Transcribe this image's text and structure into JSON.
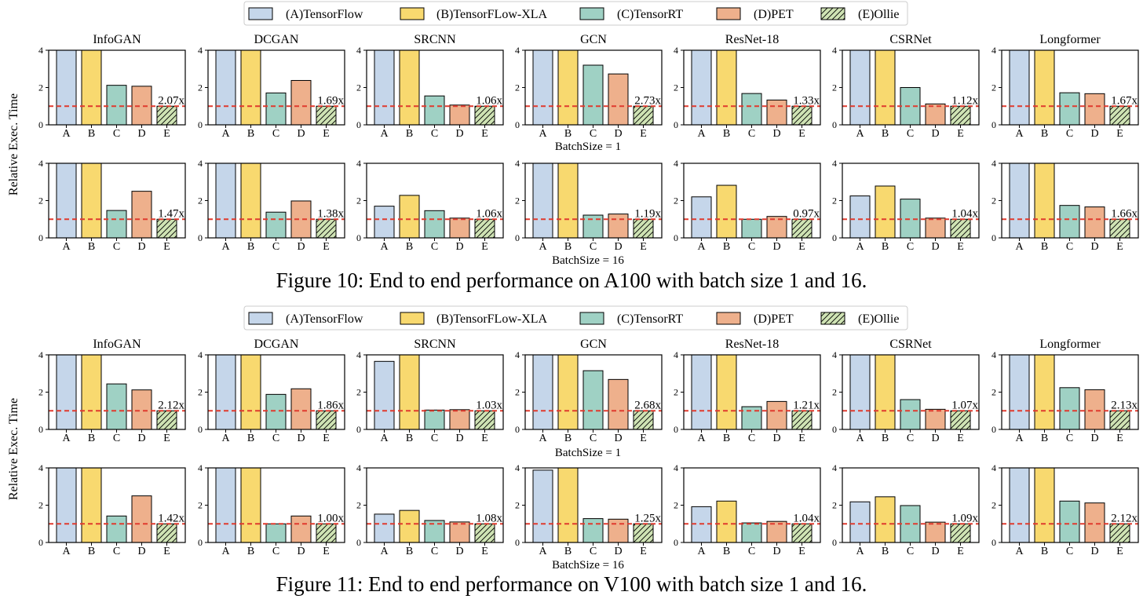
{
  "legend": {
    "entries": [
      {
        "name": "(A)TensorFlow",
        "color": "#c5d6ea",
        "hatch": false
      },
      {
        "name": "(B)TensorFLow-XLA",
        "color": "#f8d96f",
        "hatch": false
      },
      {
        "name": "(C)TensorRT",
        "color": "#9fd1c4",
        "hatch": false
      },
      {
        "name": "(D)PET",
        "color": "#eeb08c",
        "hatch": false
      },
      {
        "name": "(E)Ollie",
        "color": "#cfe3b4",
        "hatch": true
      }
    ]
  },
  "colors": {
    "reference_line": "#e03a2e",
    "bar_edge": "#000000"
  },
  "chart_data": [
    {
      "type": "bar",
      "caption": "Figure 10: End to end performance on A100 with batch size 1 and 16.",
      "ylabel": "Relative Exec. Time",
      "categories": [
        "A",
        "B",
        "C",
        "D",
        "E"
      ],
      "yticks": [
        0,
        2,
        4
      ],
      "ylim": [
        0,
        4
      ],
      "reference_line_y": 1,
      "rows": [
        {
          "label": "BatchSize = 1",
          "panels": [
            {
              "title": "InfoGAN",
              "values": [
                4,
                4,
                2.12,
                2.07,
                1
              ],
              "annotation": "2.07x"
            },
            {
              "title": "DCGAN",
              "values": [
                4,
                4,
                1.71,
                2.38,
                1
              ],
              "annotation": "1.69x"
            },
            {
              "title": "SRCNN",
              "values": [
                4,
                4,
                1.55,
                1.06,
                1
              ],
              "annotation": "1.06x"
            },
            {
              "title": "GCN",
              "values": [
                4,
                4,
                3.2,
                2.73,
                1
              ],
              "annotation": "2.73x"
            },
            {
              "title": "ResNet-18",
              "values": [
                4,
                4,
                1.68,
                1.33,
                1
              ],
              "annotation": "1.33x"
            },
            {
              "title": "CSRNet",
              "values": [
                4,
                4,
                2.0,
                1.12,
                1
              ],
              "annotation": "1.12x"
            },
            {
              "title": "Longformer",
              "values": [
                4,
                4,
                1.72,
                1.67,
                1
              ],
              "annotation": "1.67x"
            }
          ]
        },
        {
          "label": "BatchSize = 16",
          "panels": [
            {
              "title": "",
              "values": [
                4,
                4,
                1.47,
                2.5,
                1
              ],
              "annotation": "1.47x"
            },
            {
              "title": "",
              "values": [
                4,
                4,
                1.38,
                1.98,
                1
              ],
              "annotation": "1.38x"
            },
            {
              "title": "",
              "values": [
                1.7,
                2.28,
                1.46,
                1.06,
                1
              ],
              "annotation": "1.06x"
            },
            {
              "title": "",
              "values": [
                4,
                4,
                1.22,
                1.28,
                1
              ],
              "annotation": "1.19x"
            },
            {
              "title": "",
              "values": [
                2.2,
                2.82,
                1.0,
                1.15,
                1
              ],
              "annotation": "0.97x"
            },
            {
              "title": "",
              "values": [
                2.25,
                2.78,
                2.08,
                1.06,
                1
              ],
              "annotation": "1.04x"
            },
            {
              "title": "",
              "values": [
                4,
                4,
                1.74,
                1.66,
                1
              ],
              "annotation": "1.66x"
            }
          ]
        }
      ]
    },
    {
      "type": "bar",
      "caption": "Figure 11: End to end performance on V100 with batch size 1 and 16.",
      "ylabel": "Relative Exec. Time",
      "categories": [
        "A",
        "B",
        "C",
        "D",
        "E"
      ],
      "yticks": [
        0,
        2,
        4
      ],
      "ylim": [
        0,
        4
      ],
      "reference_line_y": 1,
      "rows": [
        {
          "label": "BatchSize = 1",
          "panels": [
            {
              "title": "InfoGAN",
              "values": [
                4,
                4,
                2.44,
                2.12,
                1
              ],
              "annotation": "2.12x"
            },
            {
              "title": "DCGAN",
              "values": [
                4,
                4,
                1.88,
                2.18,
                1
              ],
              "annotation": "1.86x"
            },
            {
              "title": "SRCNN",
              "values": [
                3.65,
                4,
                1.04,
                1.06,
                1
              ],
              "annotation": "1.03x"
            },
            {
              "title": "GCN",
              "values": [
                4,
                4,
                3.15,
                2.68,
                1
              ],
              "annotation": "2.68x"
            },
            {
              "title": "ResNet-18",
              "values": [
                4,
                4,
                1.22,
                1.5,
                1
              ],
              "annotation": "1.21x"
            },
            {
              "title": "CSRNet",
              "values": [
                4,
                4,
                1.6,
                1.08,
                1
              ],
              "annotation": "1.07x"
            },
            {
              "title": "Longformer",
              "values": [
                4,
                4,
                2.24,
                2.13,
                1
              ],
              "annotation": "2.13x"
            }
          ]
        },
        {
          "label": "BatchSize = 16",
          "panels": [
            {
              "title": "",
              "values": [
                4,
                4,
                1.42,
                2.5,
                1
              ],
              "annotation": "1.42x"
            },
            {
              "title": "",
              "values": [
                4,
                4,
                1.0,
                1.42,
                1
              ],
              "annotation": "1.00x"
            },
            {
              "title": "",
              "values": [
                1.52,
                1.72,
                1.18,
                1.1,
                1
              ],
              "annotation": "1.08x"
            },
            {
              "title": "",
              "values": [
                3.88,
                4,
                1.28,
                1.25,
                1
              ],
              "annotation": "1.25x"
            },
            {
              "title": "",
              "values": [
                1.92,
                2.22,
                1.05,
                1.13,
                1
              ],
              "annotation": "1.04x"
            },
            {
              "title": "",
              "values": [
                2.18,
                2.45,
                1.98,
                1.09,
                1
              ],
              "annotation": "1.09x"
            },
            {
              "title": "",
              "values": [
                4,
                4,
                2.22,
                2.12,
                1
              ],
              "annotation": "2.12x"
            }
          ]
        }
      ]
    }
  ]
}
